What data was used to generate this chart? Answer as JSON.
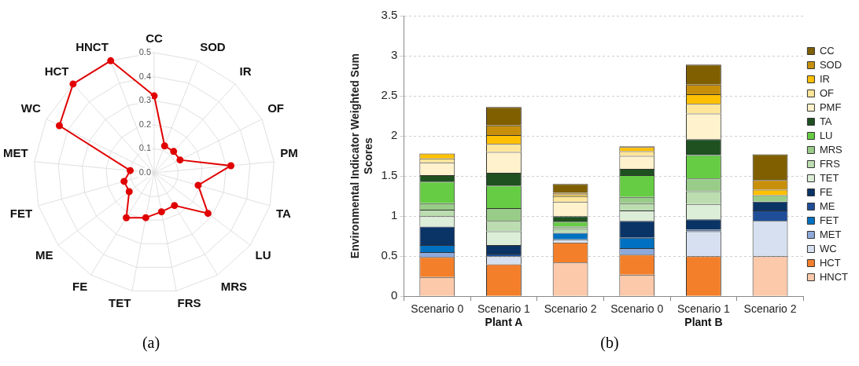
{
  "chart_data": [
    {
      "type": "radar",
      "categories": [
        "CC",
        "SOD",
        "IR",
        "OF",
        "PM",
        "TA",
        "LU",
        "MRS",
        "FRS",
        "TET",
        "FE",
        "ME",
        "FET",
        "MET",
        "WC",
        "HCT",
        "HNCT"
      ],
      "series": [
        {
          "color": "#e00000",
          "values": [
            0.32,
            0.12,
            0.12,
            0.12,
            0.32,
            0.19,
            0.28,
            0.16,
            0.165,
            0.19,
            0.22,
            0.13,
            0.13,
            0.1,
            0.44,
            0.5,
            0.5
          ]
        }
      ],
      "ylim": [
        0,
        0.5
      ],
      "yticks": [
        {
          "value": 0,
          "label": "0.0"
        },
        0.1,
        0.2,
        0.3,
        0.4,
        0.5
      ],
      "grid": true,
      "marker": "circle",
      "legend": false,
      "annotations": [
        "(a)"
      ]
    },
    {
      "type": "bar",
      "stacked": true,
      "categories": [
        "Scenario 0",
        "Scenario 1",
        "Scenario 2",
        "Scenario 0",
        "Scenario 1",
        "Scenario 2"
      ],
      "ylabel": "Environmental Indicator Weighted Sum Scores",
      "series": [
        {
          "name": "HNCT",
          "color": "#fcc9aa",
          "values": [
            0.24,
            null,
            0.42,
            0.27,
            0,
            0.5
          ]
        },
        {
          "name": "HCT",
          "color": "#f47f2a",
          "values": [
            0.25,
            0.4,
            0.25,
            0.25,
            0.5,
            0
          ]
        },
        {
          "name": "WC",
          "color": "#d6e0f0",
          "values": [
            0,
            0.1,
            0.04,
            0,
            0.31,
            0.44
          ]
        },
        {
          "name": "MET",
          "color": "#8eaadb",
          "values": [
            0.06,
            0,
            0,
            0.08,
            0,
            0
          ]
        },
        {
          "name": "FET",
          "color": "#0070c0",
          "values": [
            0.09,
            0,
            0.08,
            0.13,
            0,
            0
          ]
        },
        {
          "name": "ME",
          "color": "#1f4e99",
          "values": [
            0,
            0.03,
            0,
            0,
            0.02,
            0.13
          ]
        },
        {
          "name": "FE",
          "color": "#0a3366",
          "values": [
            0.23,
            0.11,
            0,
            0.21,
            0.13,
            0.11
          ]
        },
        {
          "name": "TET",
          "color": "#ddeed8",
          "values": [
            0.13,
            0.17,
            null,
            0.13,
            0.19,
            0
          ]
        },
        {
          "name": "FRS",
          "color": "#bbddb0",
          "values": [
            0.08,
            0.13,
            0.05,
            0.09,
            0.16,
            0
          ]
        },
        {
          "name": "MRS",
          "color": "#99cc88",
          "values": [
            0.08,
            0.16,
            0.03,
            0.08,
            0.16,
            0.08
          ]
        },
        {
          "name": "LU",
          "color": "#66cc44",
          "values": [
            0.27,
            0.28,
            0.06,
            0.27,
            0.29,
            0
          ]
        },
        {
          "name": "TA",
          "color": "#1e5020",
          "values": [
            0.08,
            0.16,
            0.07,
            0.08,
            0.2,
            0
          ]
        },
        {
          "name": "PMF",
          "color": "#fff2cc",
          "values": [
            0.16,
            0.26,
            0.18,
            0.16,
            0.32,
            0
          ]
        },
        {
          "name": "OF",
          "color": "#ffe699",
          "values": [
            0.05,
            0.1,
            0.07,
            0.06,
            0.12,
            0
          ]
        },
        {
          "name": "IR",
          "color": "#ffc000",
          "values": [
            0.06,
            0.11,
            0.02,
            0.05,
            0.12,
            0.07
          ]
        },
        {
          "name": "SOD",
          "color": "#c8900a",
          "values": [
            0,
            0.12,
            0.02,
            0,
            0.12,
            0.12
          ]
        },
        {
          "name": "CC",
          "color": "#7f5f00",
          "values": [
            0,
            0.23,
            0.11,
            0.01,
            0.25,
            0.32
          ]
        }
      ],
      "ylim": [
        0,
        3.5
      ],
      "yticks": [
        0,
        0.5,
        1,
        1.5,
        2,
        2.5,
        3,
        3.5
      ],
      "grid": "y",
      "legend": "right",
      "annotations": [
        "Plant A",
        "Plant B",
        "(b)"
      ]
    }
  ]
}
